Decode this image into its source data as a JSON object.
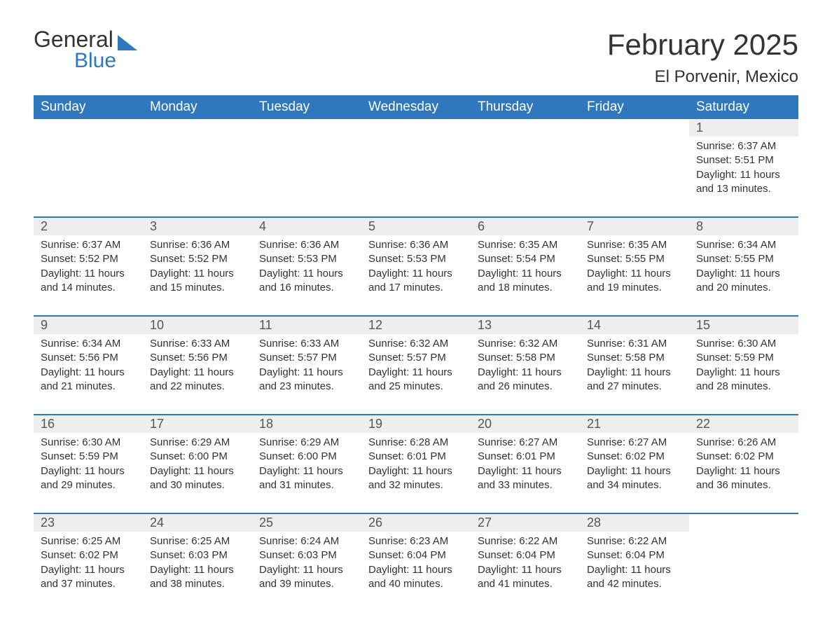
{
  "brand": {
    "general": "General",
    "blue": "Blue",
    "accent_color": "#2f78bd",
    "text_color": "#333333"
  },
  "header": {
    "month_title": "February 2025",
    "location": "El Porvenir, Mexico"
  },
  "colors": {
    "header_bg": "#2f78bd",
    "header_text": "#ffffff",
    "daynum_bg": "#eeeeee",
    "body_text": "#333333",
    "rule": "#2f78bd",
    "page_bg": "#ffffff"
  },
  "calendar": {
    "day_headers": [
      "Sunday",
      "Monday",
      "Tuesday",
      "Wednesday",
      "Thursday",
      "Friday",
      "Saturday"
    ],
    "weeks": [
      [
        {
          "day": "",
          "sunrise": "",
          "sunset": "",
          "daylight": ""
        },
        {
          "day": "",
          "sunrise": "",
          "sunset": "",
          "daylight": ""
        },
        {
          "day": "",
          "sunrise": "",
          "sunset": "",
          "daylight": ""
        },
        {
          "day": "",
          "sunrise": "",
          "sunset": "",
          "daylight": ""
        },
        {
          "day": "",
          "sunrise": "",
          "sunset": "",
          "daylight": ""
        },
        {
          "day": "",
          "sunrise": "",
          "sunset": "",
          "daylight": ""
        },
        {
          "day": "1",
          "sunrise": "Sunrise: 6:37 AM",
          "sunset": "Sunset: 5:51 PM",
          "daylight": "Daylight: 11 hours and 13 minutes."
        }
      ],
      [
        {
          "day": "2",
          "sunrise": "Sunrise: 6:37 AM",
          "sunset": "Sunset: 5:52 PM",
          "daylight": "Daylight: 11 hours and 14 minutes."
        },
        {
          "day": "3",
          "sunrise": "Sunrise: 6:36 AM",
          "sunset": "Sunset: 5:52 PM",
          "daylight": "Daylight: 11 hours and 15 minutes."
        },
        {
          "day": "4",
          "sunrise": "Sunrise: 6:36 AM",
          "sunset": "Sunset: 5:53 PM",
          "daylight": "Daylight: 11 hours and 16 minutes."
        },
        {
          "day": "5",
          "sunrise": "Sunrise: 6:36 AM",
          "sunset": "Sunset: 5:53 PM",
          "daylight": "Daylight: 11 hours and 17 minutes."
        },
        {
          "day": "6",
          "sunrise": "Sunrise: 6:35 AM",
          "sunset": "Sunset: 5:54 PM",
          "daylight": "Daylight: 11 hours and 18 minutes."
        },
        {
          "day": "7",
          "sunrise": "Sunrise: 6:35 AM",
          "sunset": "Sunset: 5:55 PM",
          "daylight": "Daylight: 11 hours and 19 minutes."
        },
        {
          "day": "8",
          "sunrise": "Sunrise: 6:34 AM",
          "sunset": "Sunset: 5:55 PM",
          "daylight": "Daylight: 11 hours and 20 minutes."
        }
      ],
      [
        {
          "day": "9",
          "sunrise": "Sunrise: 6:34 AM",
          "sunset": "Sunset: 5:56 PM",
          "daylight": "Daylight: 11 hours and 21 minutes."
        },
        {
          "day": "10",
          "sunrise": "Sunrise: 6:33 AM",
          "sunset": "Sunset: 5:56 PM",
          "daylight": "Daylight: 11 hours and 22 minutes."
        },
        {
          "day": "11",
          "sunrise": "Sunrise: 6:33 AM",
          "sunset": "Sunset: 5:57 PM",
          "daylight": "Daylight: 11 hours and 23 minutes."
        },
        {
          "day": "12",
          "sunrise": "Sunrise: 6:32 AM",
          "sunset": "Sunset: 5:57 PM",
          "daylight": "Daylight: 11 hours and 25 minutes."
        },
        {
          "day": "13",
          "sunrise": "Sunrise: 6:32 AM",
          "sunset": "Sunset: 5:58 PM",
          "daylight": "Daylight: 11 hours and 26 minutes."
        },
        {
          "day": "14",
          "sunrise": "Sunrise: 6:31 AM",
          "sunset": "Sunset: 5:58 PM",
          "daylight": "Daylight: 11 hours and 27 minutes."
        },
        {
          "day": "15",
          "sunrise": "Sunrise: 6:30 AM",
          "sunset": "Sunset: 5:59 PM",
          "daylight": "Daylight: 11 hours and 28 minutes."
        }
      ],
      [
        {
          "day": "16",
          "sunrise": "Sunrise: 6:30 AM",
          "sunset": "Sunset: 5:59 PM",
          "daylight": "Daylight: 11 hours and 29 minutes."
        },
        {
          "day": "17",
          "sunrise": "Sunrise: 6:29 AM",
          "sunset": "Sunset: 6:00 PM",
          "daylight": "Daylight: 11 hours and 30 minutes."
        },
        {
          "day": "18",
          "sunrise": "Sunrise: 6:29 AM",
          "sunset": "Sunset: 6:00 PM",
          "daylight": "Daylight: 11 hours and 31 minutes."
        },
        {
          "day": "19",
          "sunrise": "Sunrise: 6:28 AM",
          "sunset": "Sunset: 6:01 PM",
          "daylight": "Daylight: 11 hours and 32 minutes."
        },
        {
          "day": "20",
          "sunrise": "Sunrise: 6:27 AM",
          "sunset": "Sunset: 6:01 PM",
          "daylight": "Daylight: 11 hours and 33 minutes."
        },
        {
          "day": "21",
          "sunrise": "Sunrise: 6:27 AM",
          "sunset": "Sunset: 6:02 PM",
          "daylight": "Daylight: 11 hours and 34 minutes."
        },
        {
          "day": "22",
          "sunrise": "Sunrise: 6:26 AM",
          "sunset": "Sunset: 6:02 PM",
          "daylight": "Daylight: 11 hours and 36 minutes."
        }
      ],
      [
        {
          "day": "23",
          "sunrise": "Sunrise: 6:25 AM",
          "sunset": "Sunset: 6:02 PM",
          "daylight": "Daylight: 11 hours and 37 minutes."
        },
        {
          "day": "24",
          "sunrise": "Sunrise: 6:25 AM",
          "sunset": "Sunset: 6:03 PM",
          "daylight": "Daylight: 11 hours and 38 minutes."
        },
        {
          "day": "25",
          "sunrise": "Sunrise: 6:24 AM",
          "sunset": "Sunset: 6:03 PM",
          "daylight": "Daylight: 11 hours and 39 minutes."
        },
        {
          "day": "26",
          "sunrise": "Sunrise: 6:23 AM",
          "sunset": "Sunset: 6:04 PM",
          "daylight": "Daylight: 11 hours and 40 minutes."
        },
        {
          "day": "27",
          "sunrise": "Sunrise: 6:22 AM",
          "sunset": "Sunset: 6:04 PM",
          "daylight": "Daylight: 11 hours and 41 minutes."
        },
        {
          "day": "28",
          "sunrise": "Sunrise: 6:22 AM",
          "sunset": "Sunset: 6:04 PM",
          "daylight": "Daylight: 11 hours and 42 minutes."
        },
        {
          "day": "",
          "sunrise": "",
          "sunset": "",
          "daylight": ""
        }
      ]
    ]
  }
}
